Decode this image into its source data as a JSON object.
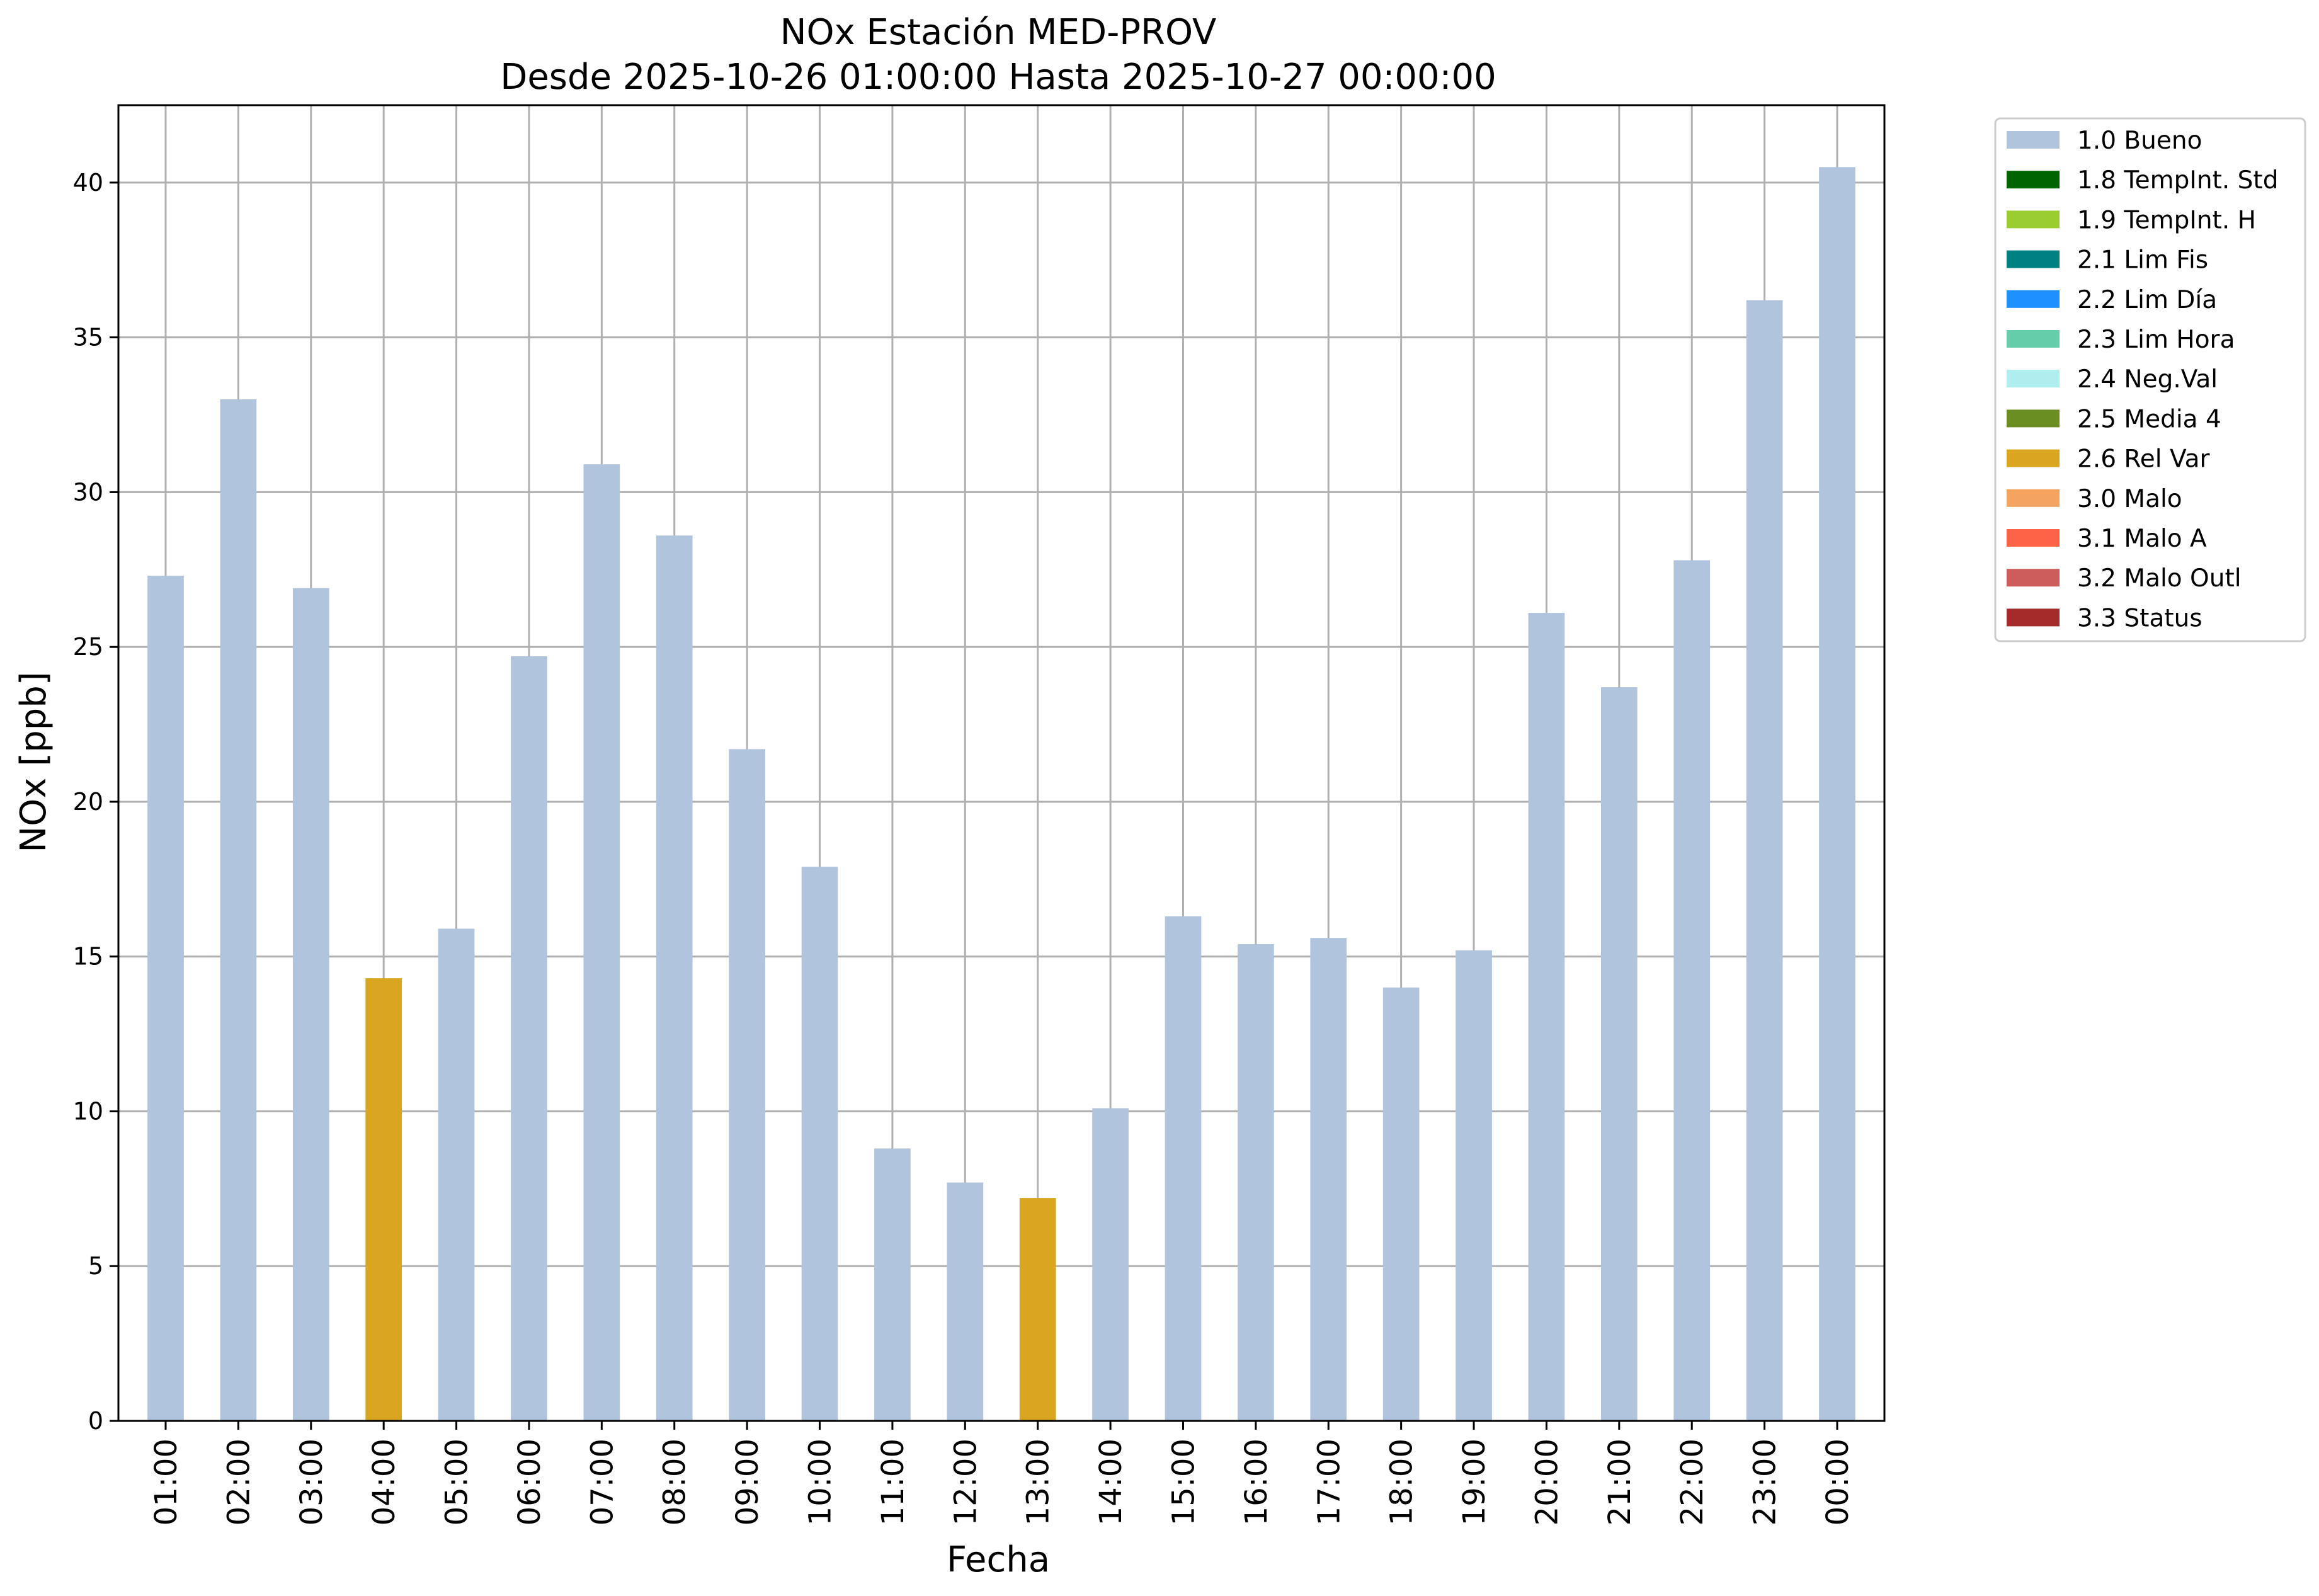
{
  "chart_data": {
    "type": "bar",
    "title": "NOx Estación MED-PROV",
    "subtitle": "Desde 2025-10-26 01:00:00 Hasta 2025-10-27 00:00:00",
    "xlabel": "Fecha",
    "ylabel": "NOx [ppb]",
    "ylim": [
      0,
      42.5
    ],
    "yticks": [
      "0",
      "5",
      "10",
      "15",
      "20",
      "25",
      "30",
      "35",
      "40"
    ],
    "grid": true,
    "legend_position": "outside-top-right",
    "categories": [
      "01:00",
      "02:00",
      "03:00",
      "04:00",
      "05:00",
      "06:00",
      "07:00",
      "08:00",
      "09:00",
      "10:00",
      "11:00",
      "12:00",
      "13:00",
      "14:00",
      "15:00",
      "16:00",
      "17:00",
      "18:00",
      "19:00",
      "20:00",
      "21:00",
      "22:00",
      "23:00",
      "00:00"
    ],
    "values": [
      27.3,
      33.0,
      26.9,
      14.3,
      15.9,
      24.7,
      30.9,
      28.6,
      21.7,
      17.9,
      8.8,
      7.7,
      7.2,
      10.1,
      16.3,
      15.4,
      15.6,
      14.0,
      15.2,
      26.1,
      23.7,
      27.8,
      36.2,
      40.5
    ],
    "flags": [
      "1.0 Bueno",
      "1.0 Bueno",
      "1.0 Bueno",
      "2.6 Rel Var",
      "1.0 Bueno",
      "1.0 Bueno",
      "1.0 Bueno",
      "1.0 Bueno",
      "1.0 Bueno",
      "1.0 Bueno",
      "1.0 Bueno",
      "1.0 Bueno",
      "2.6 Rel Var",
      "1.0 Bueno",
      "1.0 Bueno",
      "1.0 Bueno",
      "1.0 Bueno",
      "1.0 Bueno",
      "1.0 Bueno",
      "1.0 Bueno",
      "1.0 Bueno",
      "1.0 Bueno",
      "1.0 Bueno",
      "1.0 Bueno"
    ],
    "legend": [
      {
        "label": "1.0 Bueno",
        "color": "#b0c4de"
      },
      {
        "label": "1.8 TempInt. Std",
        "color": "#006400"
      },
      {
        "label": "1.9 TempInt. H",
        "color": "#9acd32"
      },
      {
        "label": "2.1 Lim Fis",
        "color": "#008080"
      },
      {
        "label": "2.2 Lim Día",
        "color": "#1e90ff"
      },
      {
        "label": "2.3 Lim Hora",
        "color": "#66cdaa"
      },
      {
        "label": "2.4 Neg.Val",
        "color": "#afeeee"
      },
      {
        "label": "2.5 Media 4",
        "color": "#6b8e23"
      },
      {
        "label": "2.6 Rel Var",
        "color": "#daa520"
      },
      {
        "label": "3.0 Malo",
        "color": "#f4a460"
      },
      {
        "label": "3.1 Malo A",
        "color": "#ff6347"
      },
      {
        "label": "3.2 Malo Outl",
        "color": "#cd5c5c"
      },
      {
        "label": "3.3 Status",
        "color": "#a52a2a"
      }
    ]
  }
}
